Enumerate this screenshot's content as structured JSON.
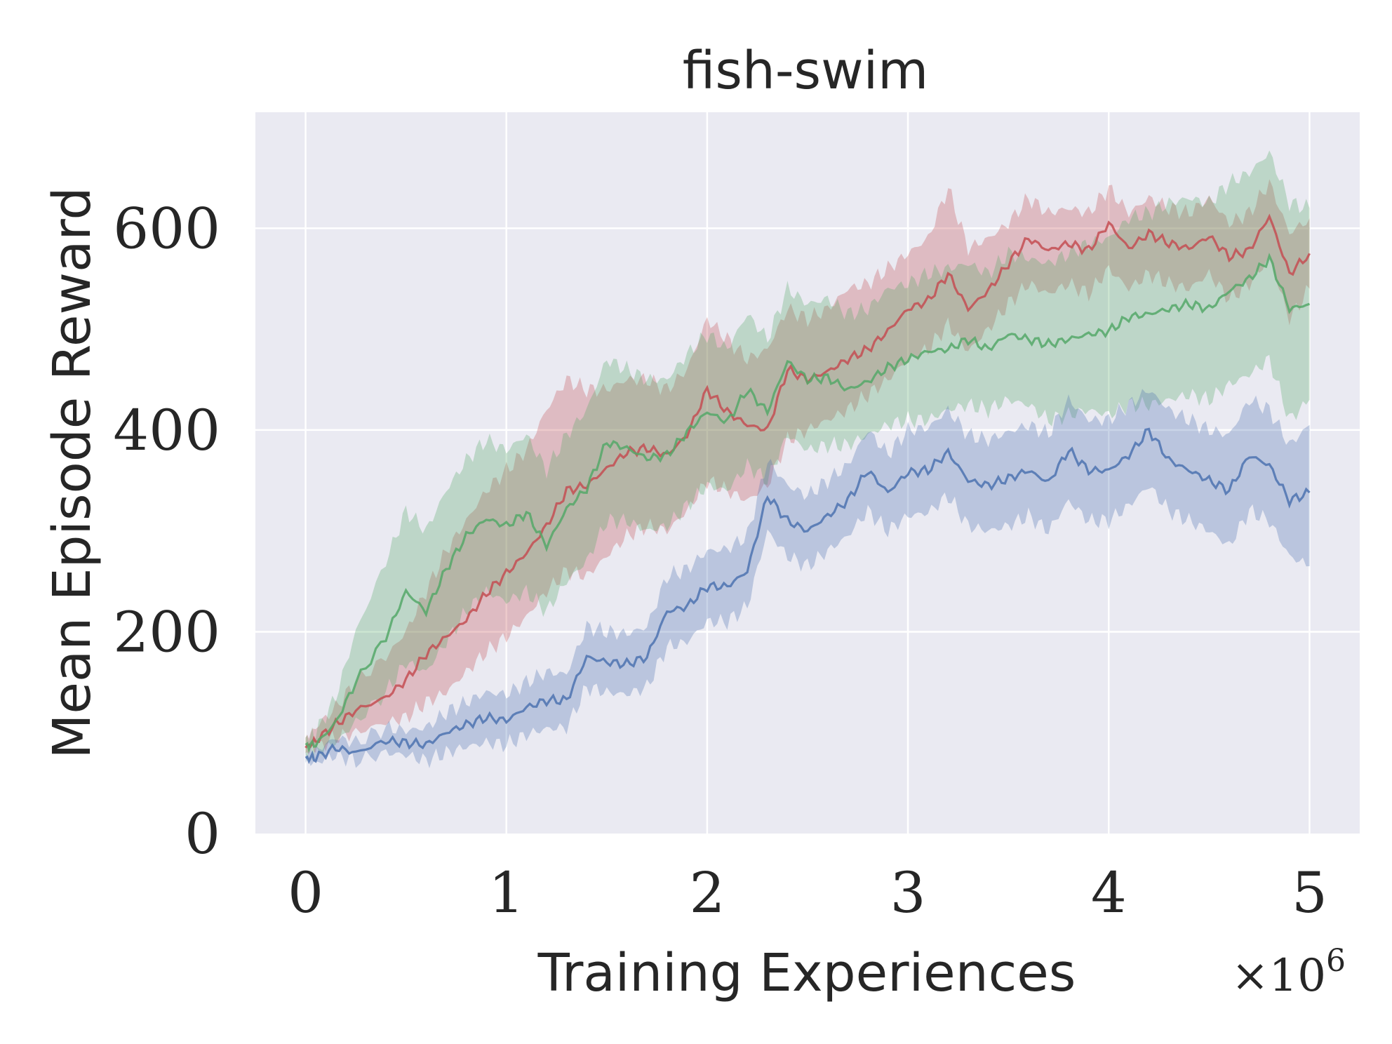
{
  "chart_data": {
    "type": "line",
    "title": "fish-swim",
    "xlabel": "Training Experiences",
    "ylabel": "Mean Episode Reward",
    "x_multiplier_label": "×10",
    "x_multiplier_exp": "6",
    "xlim": [
      -0.25,
      5.25
    ],
    "ylim": [
      0,
      715
    ],
    "xticks": [
      0,
      1,
      2,
      3,
      4,
      5
    ],
    "xtick_labels": [
      "0",
      "1",
      "2",
      "3",
      "4",
      "5"
    ],
    "yticks": [
      0,
      200,
      400,
      600
    ],
    "ytick_labels": [
      "0",
      "200",
      "400",
      "600"
    ],
    "grid": true,
    "background": "#eaeaf2",
    "x_unit_scale": 1000000,
    "series": [
      {
        "color": "#c44e52",
        "x": [
          0,
          0.05,
          0.15,
          0.25,
          0.4,
          0.5,
          0.6,
          0.7,
          0.8,
          0.9,
          1.0,
          1.1,
          1.2,
          1.3,
          1.4,
          1.5,
          1.6,
          1.7,
          1.8,
          1.9,
          2.0,
          2.1,
          2.2,
          2.3,
          2.4,
          2.5,
          2.6,
          2.7,
          2.8,
          2.9,
          3.0,
          3.1,
          3.2,
          3.3,
          3.4,
          3.5,
          3.6,
          3.7,
          3.8,
          3.9,
          4.0,
          4.1,
          4.2,
          4.3,
          4.4,
          4.5,
          4.6,
          4.7,
          4.8,
          4.9,
          5.0
        ],
        "mean": [
          85,
          92,
          108,
          122,
          135,
          152,
          178,
          195,
          212,
          238,
          258,
          278,
          305,
          340,
          345,
          362,
          378,
          382,
          375,
          395,
          440,
          418,
          405,
          400,
          460,
          450,
          458,
          470,
          480,
          498,
          520,
          528,
          555,
          520,
          538,
          565,
          590,
          578,
          585,
          578,
          605,
          580,
          595,
          585,
          580,
          592,
          572,
          578,
          612,
          555,
          575
        ],
        "lower": [
          80,
          85,
          95,
          100,
          110,
          115,
          130,
          140,
          160,
          180,
          195,
          215,
          240,
          260,
          255,
          275,
          295,
          305,
          300,
          320,
          350,
          340,
          330,
          345,
          390,
          400,
          410,
          420,
          435,
          450,
          470,
          480,
          505,
          478,
          500,
          525,
          545,
          535,
          545,
          535,
          560,
          540,
          555,
          545,
          540,
          555,
          530,
          545,
          570,
          510,
          540
        ],
        "upper": [
          95,
          105,
          125,
          150,
          175,
          200,
          240,
          280,
          310,
          340,
          360,
          380,
          420,
          450,
          440,
          440,
          450,
          450,
          440,
          460,
          510,
          490,
          470,
          480,
          520,
          510,
          520,
          540,
          545,
          560,
          575,
          590,
          640,
          580,
          590,
          605,
          630,
          615,
          620,
          615,
          640,
          615,
          630,
          620,
          615,
          630,
          605,
          615,
          645,
          595,
          610
        ]
      },
      {
        "color": "#55a868",
        "x": [
          0,
          0.05,
          0.15,
          0.25,
          0.4,
          0.5,
          0.6,
          0.7,
          0.8,
          0.9,
          1.0,
          1.1,
          1.2,
          1.3,
          1.4,
          1.5,
          1.6,
          1.7,
          1.8,
          1.9,
          2.0,
          2.1,
          2.2,
          2.3,
          2.4,
          2.5,
          2.6,
          2.7,
          2.8,
          2.9,
          3.0,
          3.1,
          3.2,
          3.3,
          3.4,
          3.5,
          3.6,
          3.7,
          3.8,
          3.9,
          4.0,
          4.1,
          4.2,
          4.3,
          4.4,
          4.5,
          4.6,
          4.7,
          4.8,
          4.9,
          5.0
        ],
        "mean": [
          88,
          88,
          110,
          150,
          195,
          240,
          220,
          262,
          295,
          312,
          305,
          318,
          285,
          322,
          342,
          388,
          382,
          372,
          375,
          398,
          418,
          408,
          440,
          418,
          468,
          450,
          452,
          440,
          448,
          462,
          470,
          478,
          480,
          490,
          480,
          495,
          490,
          485,
          490,
          495,
          498,
          512,
          515,
          520,
          525,
          520,
          538,
          550,
          570,
          520,
          525
        ],
        "lower": [
          80,
          80,
          90,
          110,
          140,
          170,
          160,
          190,
          220,
          240,
          230,
          240,
          220,
          250,
          270,
          310,
          310,
          300,
          305,
          325,
          345,
          340,
          365,
          350,
          395,
          380,
          385,
          385,
          395,
          405,
          410,
          410,
          420,
          425,
          420,
          430,
          425,
          410,
          415,
          420,
          415,
          425,
          425,
          430,
          435,
          430,
          445,
          455,
          470,
          410,
          430
        ],
        "upper": [
          95,
          100,
          135,
          200,
          270,
          320,
          300,
          340,
          370,
          390,
          380,
          395,
          360,
          395,
          420,
          470,
          460,
          450,
          450,
          475,
          495,
          480,
          515,
          490,
          540,
          525,
          530,
          515,
          520,
          540,
          545,
          555,
          560,
          565,
          555,
          575,
          570,
          565,
          575,
          585,
          590,
          610,
          615,
          625,
          630,
          625,
          645,
          655,
          675,
          625,
          620
        ]
      },
      {
        "color": "#4c72b0",
        "x": [
          0,
          0.05,
          0.15,
          0.25,
          0.4,
          0.5,
          0.6,
          0.7,
          0.8,
          0.9,
          1.0,
          1.1,
          1.2,
          1.3,
          1.4,
          1.5,
          1.6,
          1.7,
          1.8,
          1.9,
          2.0,
          2.1,
          2.2,
          2.3,
          2.4,
          2.5,
          2.6,
          2.7,
          2.8,
          2.9,
          3.0,
          3.1,
          3.2,
          3.3,
          3.4,
          3.5,
          3.6,
          3.7,
          3.8,
          3.9,
          4.0,
          4.1,
          4.2,
          4.3,
          4.4,
          4.5,
          4.6,
          4.7,
          4.8,
          4.9,
          5.0
        ],
        "mean": [
          75,
          75,
          85,
          80,
          92,
          90,
          88,
          100,
          108,
          115,
          112,
          125,
          132,
          132,
          175,
          170,
          168,
          175,
          220,
          225,
          245,
          245,
          260,
          335,
          310,
          300,
          315,
          330,
          360,
          338,
          358,
          360,
          378,
          350,
          345,
          352,
          360,
          348,
          380,
          360,
          360,
          375,
          400,
          370,
          360,
          350,
          340,
          375,
          365,
          330,
          338
        ],
        "lower": [
          70,
          70,
          78,
          72,
          80,
          78,
          72,
          80,
          86,
          90,
          88,
          98,
          104,
          105,
          145,
          140,
          138,
          145,
          185,
          190,
          210,
          210,
          225,
          300,
          275,
          265,
          280,
          295,
          320,
          300,
          315,
          318,
          335,
          305,
          300,
          305,
          315,
          300,
          330,
          310,
          310,
          325,
          345,
          320,
          310,
          300,
          285,
          320,
          310,
          275,
          265
        ],
        "upper": [
          82,
          82,
          95,
          90,
          105,
          102,
          105,
          120,
          130,
          140,
          138,
          150,
          160,
          158,
          205,
          200,
          198,
          205,
          255,
          262,
          280,
          282,
          295,
          370,
          345,
          335,
          350,
          365,
          400,
          376,
          400,
          402,
          420,
          395,
          390,
          398,
          405,
          396,
          430,
          410,
          410,
          425,
          440,
          420,
          410,
          400,
          395,
          430,
          420,
          385,
          405
        ]
      }
    ]
  }
}
